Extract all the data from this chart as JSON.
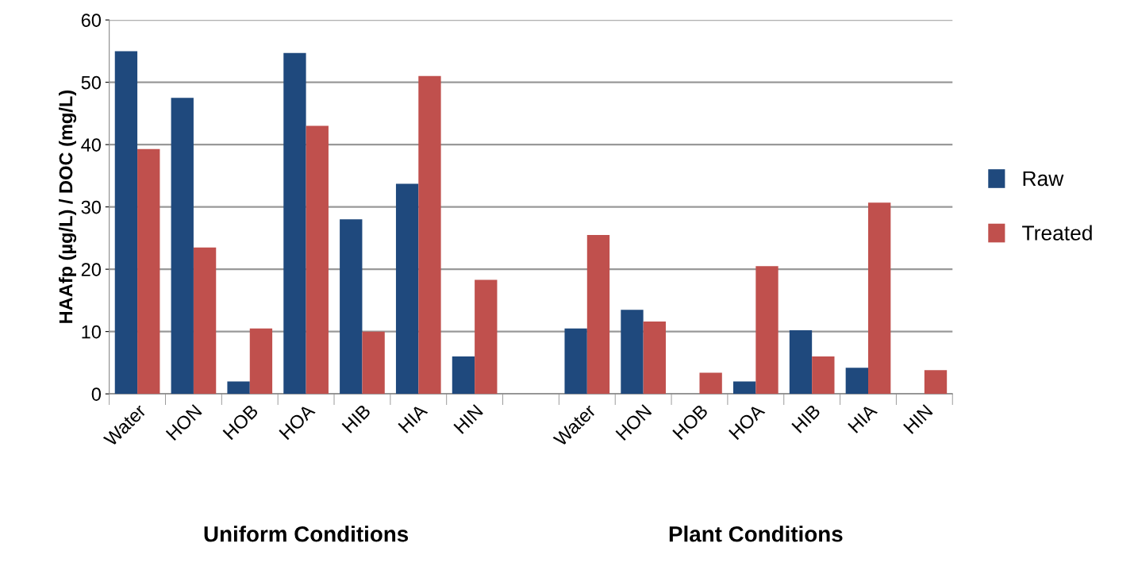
{
  "chart_data": {
    "type": "bar",
    "ylabel": "HAAfp (µg/L) / DOC (mg/L)",
    "categories": [
      "Water",
      "HON",
      "HOB",
      "HOA",
      "HIB",
      "HIA",
      "HIN",
      null,
      "Water",
      "HON",
      "HOB",
      "HOA",
      "HIB",
      "HIA",
      "HIN"
    ],
    "series": [
      {
        "name": "Raw",
        "color": "#1f497d",
        "values": [
          55,
          47.5,
          2,
          54.7,
          28,
          33.7,
          6,
          null,
          10.5,
          13.5,
          0,
          2,
          10.2,
          4.2,
          0
        ]
      },
      {
        "name": "Treated",
        "color": "#c0504d",
        "values": [
          39.3,
          23.5,
          10.5,
          43,
          10,
          51,
          18.3,
          null,
          25.5,
          11.6,
          3.4,
          20.5,
          6,
          30.7,
          3.8
        ]
      }
    ],
    "ylim": [
      0,
      60
    ],
    "yticks": [
      0,
      10,
      20,
      30,
      40,
      50,
      60
    ],
    "grid": "y",
    "legend": "right",
    "annotations": [
      "Uniform Conditions",
      "Plant Conditions"
    ]
  }
}
